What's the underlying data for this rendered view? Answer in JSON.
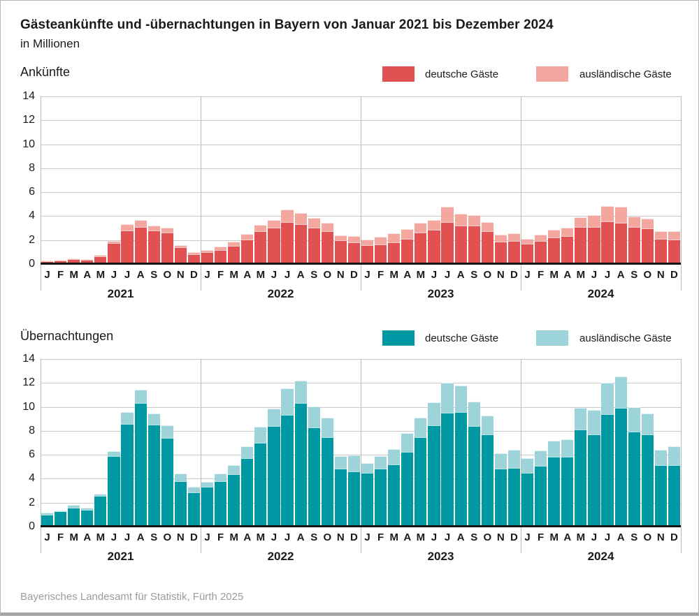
{
  "title": "Gästeankünfte und -übernachtungen in Bayern von Januar 2021 bis Dezember 2024",
  "subtitle": "in Millionen",
  "footer": "Bayerisches Landesamt für Statistik, Fürth 2025",
  "colors": {
    "arrivals_domestic": "#e15152",
    "arrivals_foreign": "#f3a79f",
    "nights_domestic": "#0099a3",
    "nights_foreign": "#9dd4da",
    "gridline": "#c9c9c9",
    "axis": "#161616",
    "separator": "#b9b9b9",
    "footer_text": "#9c9c9c"
  },
  "chart_data": [
    {
      "type": "bar",
      "stacked": true,
      "title": "Ankünfte",
      "unit": "in Millionen",
      "ylim": [
        0,
        14
      ],
      "yticks": [
        0,
        2,
        4,
        6,
        8,
        10,
        12,
        14
      ],
      "grid": true,
      "legend_position": "top-right",
      "years": [
        "2021",
        "2022",
        "2023",
        "2024"
      ],
      "month_letters": [
        "J",
        "F",
        "M",
        "A",
        "M",
        "J",
        "J",
        "A",
        "S",
        "O",
        "N",
        "D"
      ],
      "series": [
        {
          "name": "deutsche Gäste",
          "color": "#e15152",
          "values": [
            0.1,
            0.2,
            0.3,
            0.22,
            0.55,
            1.65,
            2.7,
            3.0,
            2.7,
            2.5,
            1.3,
            0.7,
            0.85,
            1.05,
            1.4,
            1.95,
            2.6,
            2.9,
            3.4,
            3.2,
            2.9,
            2.6,
            1.85,
            1.7,
            1.45,
            1.5,
            1.7,
            2.0,
            2.5,
            2.75,
            3.4,
            3.1,
            3.1,
            2.6,
            1.75,
            1.8,
            1.6,
            1.8,
            2.1,
            2.2,
            2.95,
            2.95,
            3.45,
            3.35,
            2.95,
            2.85,
            2.0,
            1.95
          ]
        },
        {
          "name": "ausländische Gäste",
          "color": "#f3a79f",
          "values": [
            0.03,
            0.04,
            0.05,
            0.05,
            0.07,
            0.15,
            0.5,
            0.55,
            0.4,
            0.4,
            0.15,
            0.15,
            0.2,
            0.3,
            0.35,
            0.45,
            0.55,
            0.65,
            1.05,
            0.95,
            0.85,
            0.75,
            0.45,
            0.55,
            0.45,
            0.65,
            0.75,
            0.8,
            0.8,
            0.8,
            1.25,
            1.0,
            0.9,
            0.8,
            0.6,
            0.65,
            0.4,
            0.55,
            0.65,
            0.7,
            0.85,
            1.0,
            1.3,
            1.3,
            0.9,
            0.85,
            0.6,
            0.7
          ]
        }
      ]
    },
    {
      "type": "bar",
      "stacked": true,
      "title": "Übernachtungen",
      "unit": "in Millionen",
      "ylim": [
        0,
        14
      ],
      "yticks": [
        0,
        2,
        4,
        6,
        8,
        10,
        12,
        14
      ],
      "grid": true,
      "legend_position": "top-right",
      "years": [
        "2021",
        "2022",
        "2023",
        "2024"
      ],
      "month_letters": [
        "J",
        "F",
        "M",
        "A",
        "M",
        "J",
        "J",
        "A",
        "S",
        "O",
        "N",
        "D"
      ],
      "series": [
        {
          "name": "deutsche Gäste",
          "color": "#0099a3",
          "values": [
            0.9,
            1.15,
            1.45,
            1.3,
            2.45,
            5.75,
            8.45,
            10.2,
            8.4,
            7.3,
            3.65,
            2.75,
            3.2,
            3.7,
            4.25,
            5.6,
            6.9,
            8.3,
            9.2,
            10.2,
            8.15,
            7.35,
            4.7,
            4.5,
            4.35,
            4.7,
            5.05,
            6.15,
            7.35,
            8.35,
            9.4,
            9.45,
            8.3,
            7.6,
            4.75,
            4.8,
            4.4,
            4.95,
            5.7,
            5.7,
            8.0,
            7.6,
            9.3,
            9.8,
            7.8,
            7.6,
            5.0,
            5.0
          ]
        },
        {
          "name": "ausländische Gäste",
          "color": "#9dd4da",
          "values": [
            0.15,
            0.1,
            0.25,
            0.15,
            0.2,
            0.45,
            1.0,
            1.1,
            0.95,
            1.05,
            0.65,
            0.45,
            0.4,
            0.65,
            0.75,
            1.0,
            1.35,
            1.45,
            2.25,
            1.9,
            1.75,
            1.65,
            1.1,
            1.35,
            0.85,
            1.1,
            1.3,
            1.55,
            1.65,
            1.95,
            2.5,
            2.2,
            2.05,
            1.55,
            1.25,
            1.5,
            1.2,
            1.3,
            1.35,
            1.5,
            1.8,
            2.0,
            2.6,
            2.65,
            2.05,
            1.75,
            1.3,
            1.6
          ]
        }
      ]
    }
  ]
}
